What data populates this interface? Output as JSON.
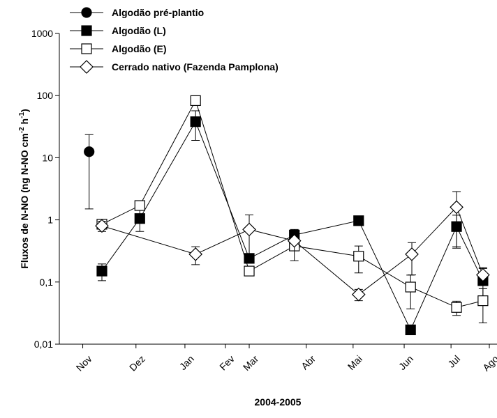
{
  "chart_data": {
    "type": "line",
    "ylabel_parts": [
      "Fluxos de N-NO (ng N-NO cm",
      "-2",
      " h",
      "-1",
      ")"
    ],
    "xlabel": "2004-2005",
    "ylog": true,
    "ylim": [
      0.01,
      1000
    ],
    "yticks": [
      {
        "value": 0.01,
        "label": "0,01"
      },
      {
        "value": 0.1,
        "label": "0,1"
      },
      1,
      10,
      100,
      1000
    ],
    "xlim": [
      -1.0,
      9.28
    ],
    "xticks": [
      {
        "value": -0.45,
        "label": "Nov"
      },
      {
        "value": 0.8,
        "label": "Dez"
      },
      {
        "value": 1.95,
        "label": "Jan"
      },
      {
        "value": 2.9,
        "label": "Fev"
      },
      {
        "value": 3.46,
        "label": "Mar"
      },
      {
        "value": 4.8,
        "label": "Abr"
      },
      {
        "value": 5.9,
        "label": "Mai"
      },
      {
        "value": 7.1,
        "label": "Jun"
      },
      {
        "value": 8.2,
        "label": "Jul"
      },
      {
        "value": 9.1,
        "label": "Ago"
      }
    ],
    "legend": "top-left",
    "series": [
      {
        "name": "Algodão pré-plantio",
        "marker": "circle",
        "color": "#000000",
        "filled": true,
        "x": [
          -0.3
        ],
        "values": [
          12.5
        ],
        "errors": [
          11
        ]
      },
      {
        "name": "Algodão (L)",
        "marker": "square",
        "color": "#000000",
        "filled": true,
        "x": [
          0,
          0.89,
          2.2,
          3.46,
          4.52,
          6.03,
          7.25,
          8.33,
          8.95
        ],
        "values": [
          0.15,
          1.05,
          38,
          0.24,
          0.57,
          0.97,
          0.017,
          0.78,
          0.105
        ],
        "errors": [
          0.045,
          0.4,
          19,
          null,
          null,
          null,
          null,
          0.41,
          0.06
        ]
      },
      {
        "name": "Algodão (E)",
        "marker": "square",
        "color": "#000000",
        "filled": false,
        "x": [
          0,
          0.89,
          2.2,
          3.46,
          4.52,
          6.03,
          7.25,
          8.33,
          8.95
        ],
        "values": [
          0.85,
          1.7,
          83,
          0.15,
          0.38,
          0.26,
          0.083,
          0.039,
          0.05
        ],
        "errors": [
          null,
          null,
          null,
          null,
          null,
          0.12,
          0.046,
          0.01,
          0.028
        ]
      },
      {
        "name": "Cerrado nativo (Fazenda Pamplona)",
        "marker": "diamond",
        "color": "#000000",
        "filled": false,
        "x": [
          0,
          2.2,
          3.46,
          4.52,
          6.03,
          7.28,
          8.33,
          8.95
        ],
        "values": [
          0.8,
          0.28,
          0.7,
          0.46,
          0.063,
          0.28,
          1.6,
          0.13
        ],
        "errors": [
          0.15,
          0.09,
          0.5,
          0.24,
          0.013,
          0.15,
          1.25,
          0.04
        ]
      }
    ]
  }
}
